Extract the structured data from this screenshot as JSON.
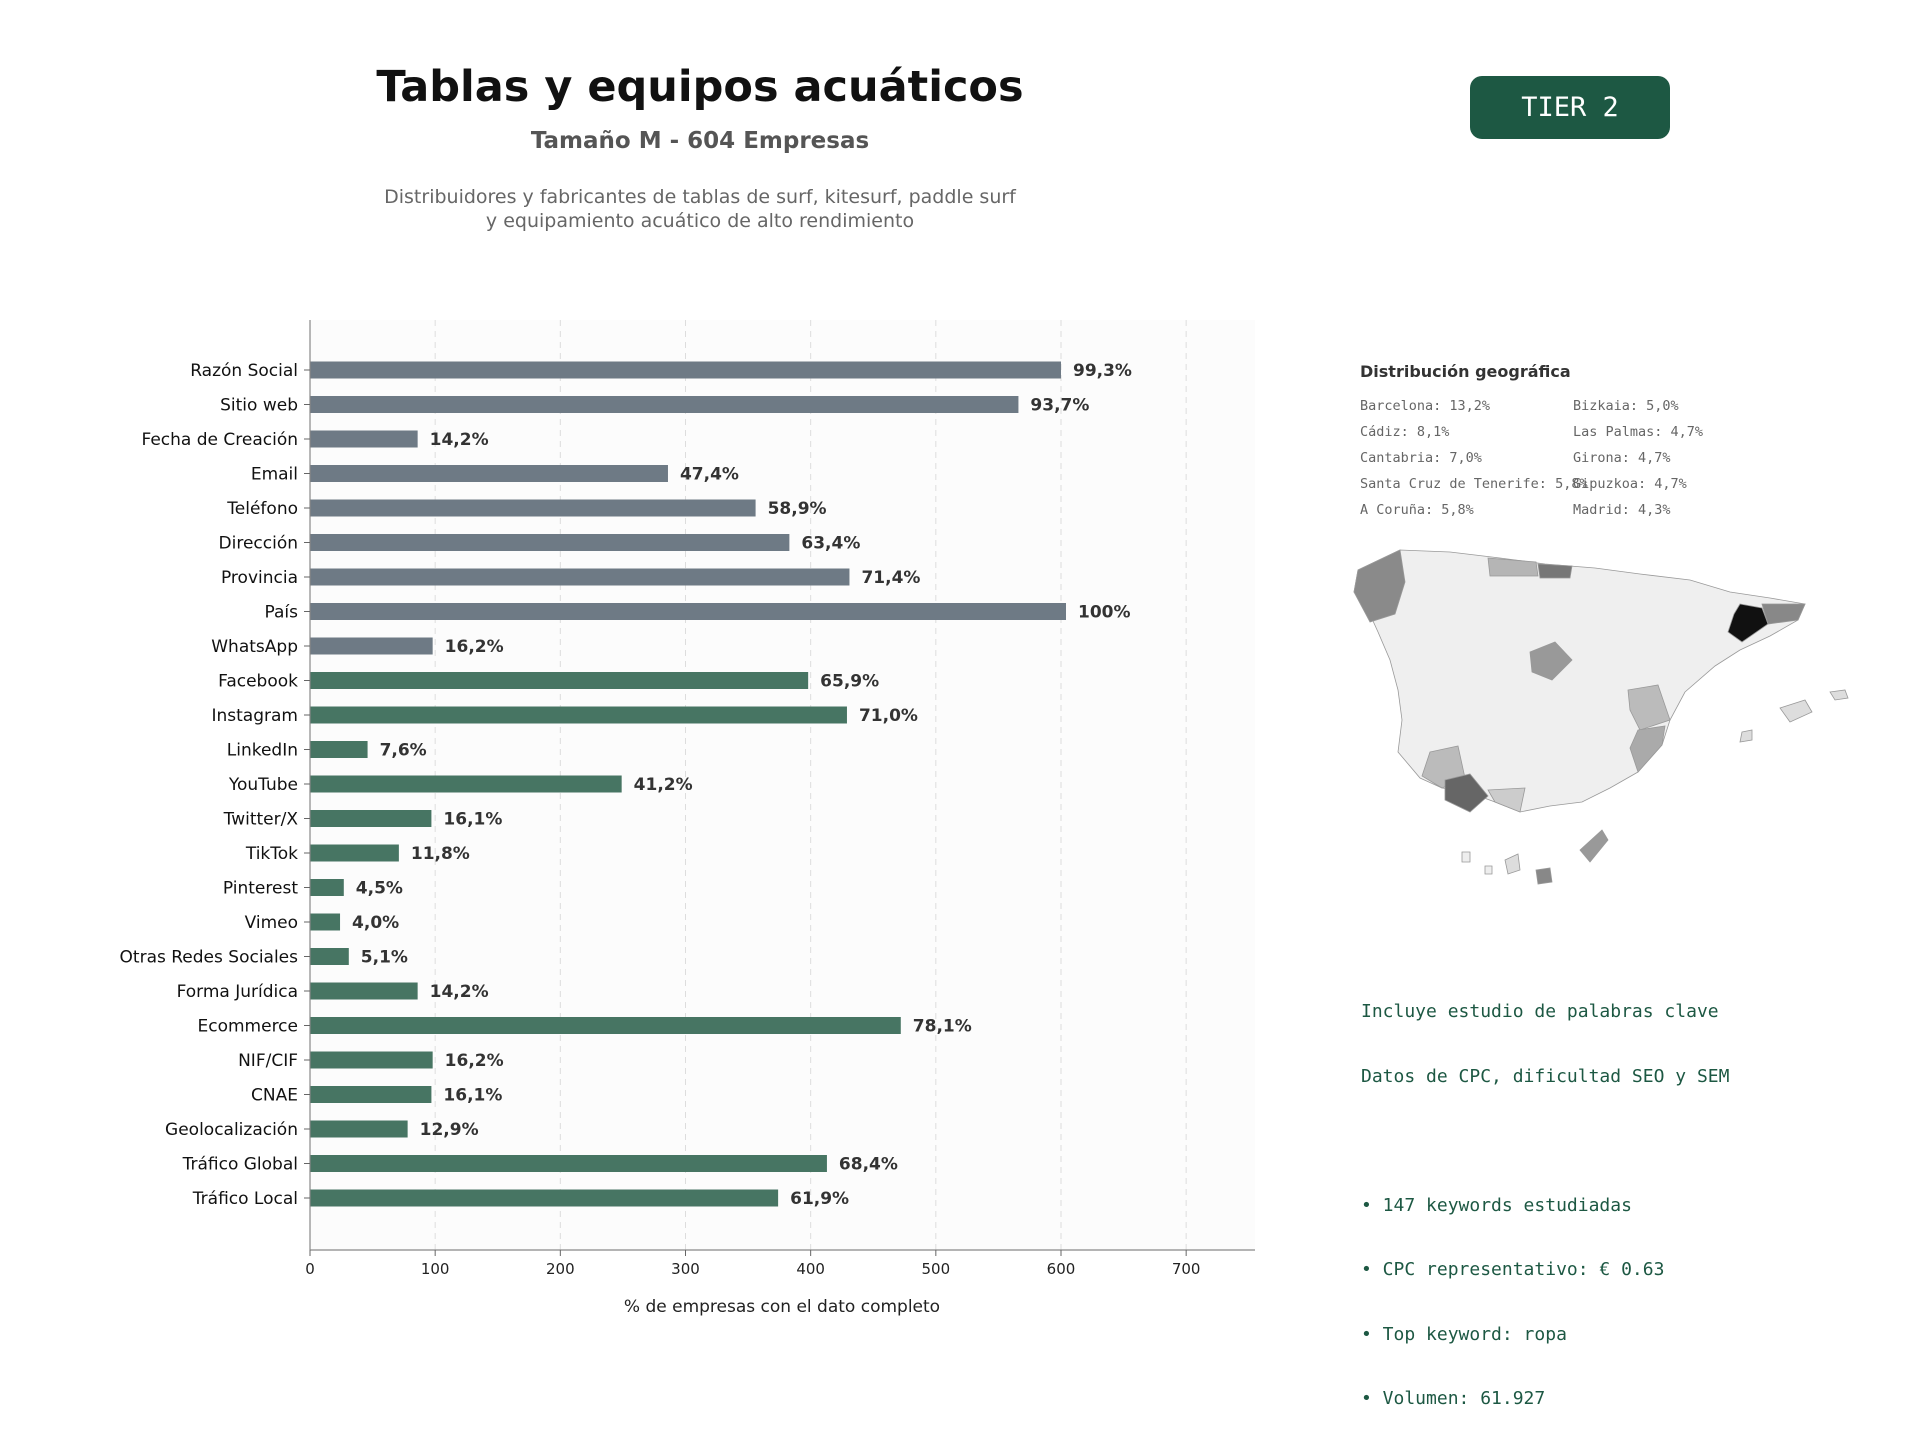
{
  "header": {
    "title": "Tablas y equipos acuáticos",
    "subtitle": "Tamaño M - 604 Empresas",
    "description_line1": "Distribuidores y fabricantes de tablas de surf, kitesurf, paddle surf",
    "description_line2": "y equipamiento acuático de alto rendimiento",
    "tier": "TIER 2"
  },
  "colors": {
    "gray_bar": "#6e7a85",
    "green_bar": "#477563",
    "accent": "#1d5843"
  },
  "chart_data": {
    "type": "bar",
    "orientation": "horizontal",
    "xlabel": "% de empresas con el dato completo",
    "xlim": [
      0,
      755
    ],
    "xticks": [
      0,
      100,
      200,
      300,
      400,
      500,
      600,
      700
    ],
    "grid": "vertical dashed",
    "categories": [
      "Razón Social",
      "Sitio web",
      "Fecha de Creación",
      "Email",
      "Teléfono",
      "Dirección",
      "Provincia",
      "País",
      "WhatsApp",
      "Facebook",
      "Instagram",
      "LinkedIn",
      "YouTube",
      "Twitter/X",
      "TikTok",
      "Pinterest",
      "Vimeo",
      "Otras Redes Sociales",
      "Forma Jurídica",
      "Ecommerce",
      "NIF/CIF",
      "CNAE",
      "Geolocalización",
      "Tráfico Global",
      "Tráfico Local"
    ],
    "values": [
      600,
      566,
      86,
      286,
      356,
      383,
      431,
      604,
      98,
      398,
      429,
      46,
      249,
      97,
      71,
      27,
      24,
      31,
      86,
      472,
      98,
      97,
      78,
      413,
      374
    ],
    "labels": [
      "99,3%",
      "93,7%",
      "14,2%",
      "47,4%",
      "58,9%",
      "63,4%",
      "71,4%",
      "100%",
      "16,2%",
      "65,9%",
      "71,0%",
      "7,6%",
      "41,2%",
      "16,1%",
      "11,8%",
      "4,5%",
      "4,0%",
      "5,1%",
      "14,2%",
      "78,1%",
      "16,2%",
      "16,1%",
      "12,9%",
      "68,4%",
      "61,9%"
    ],
    "bar_color_groups": [
      "gray",
      "gray",
      "gray",
      "gray",
      "gray",
      "gray",
      "gray",
      "gray",
      "gray",
      "green",
      "green",
      "green",
      "green",
      "green",
      "green",
      "green",
      "green",
      "green",
      "green",
      "green",
      "green",
      "green",
      "green",
      "green",
      "green"
    ]
  },
  "geo": {
    "title": "Distribución geográfica",
    "items": [
      "Barcelona: 13,2%",
      "Cádiz: 8,1%",
      "Cantabria: 7,0%",
      "Santa Cruz de Tenerife: 5,8%",
      "A Coruña: 5,8%",
      "Bizkaia: 5,0%",
      "Las Palmas: 4,7%",
      "Girona: 4,7%",
      "Gipuzkoa: 4,7%",
      "Madrid: 4,3%"
    ]
  },
  "keywords": {
    "line1": "Incluye estudio de palabras clave",
    "line2": "Datos de CPC, dificultad SEO y SEM",
    "bullet1": "• 147 keywords estudiadas",
    "bullet2": "• CPC representativo: € 0.63",
    "bullet3": "• Top keyword: ropa",
    "bullet4": "• Volumen: 61.927"
  }
}
